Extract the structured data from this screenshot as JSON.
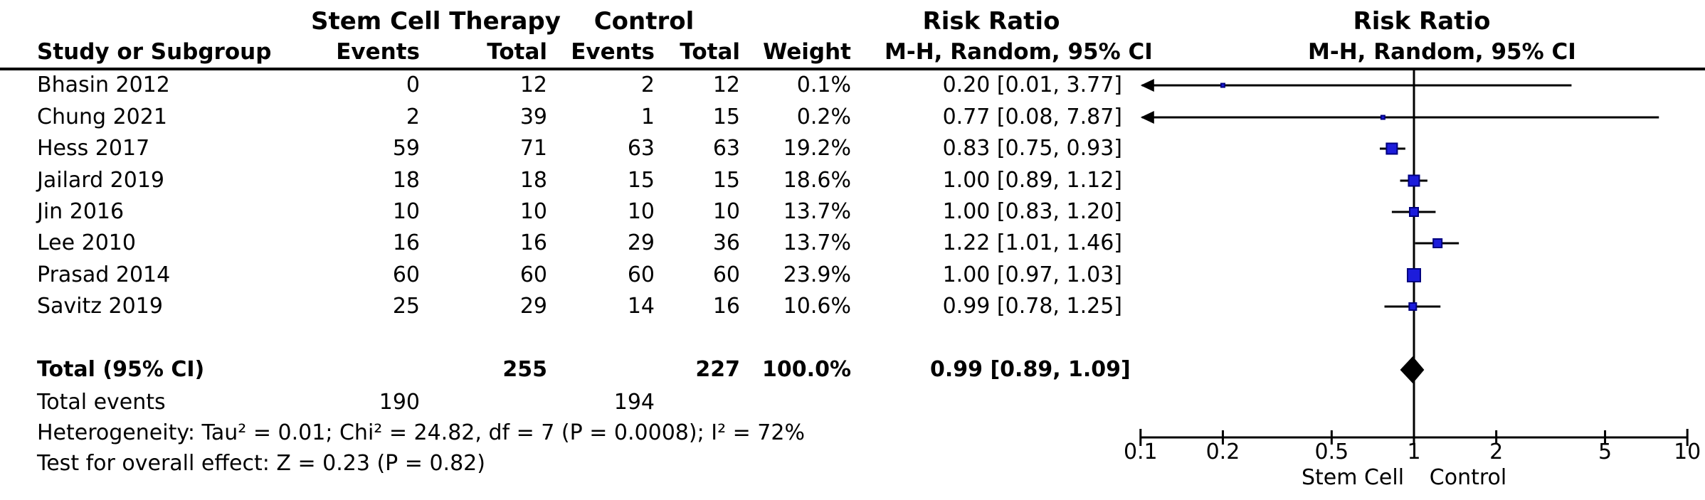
{
  "colors": {
    "background": "#ffffff",
    "text": "#000000",
    "line": "#000000",
    "marker_fill": "#1c1cdb",
    "marker_border": "#000080",
    "diamond": "#000000"
  },
  "header": {
    "group_sct": "Stem Cell Therapy",
    "group_ctrl": "Control",
    "rr_title_text": "Risk Ratio",
    "rr_title_plot": "Risk Ratio",
    "study_col": "Study or Subgroup",
    "events_col_sct": "Events",
    "total_col_sct": "Total",
    "events_col_ctrl": "Events",
    "total_col_ctrl": "Total",
    "weight_col": "Weight",
    "mh_text_col": "M-H, Random, 95% CI",
    "mh_plot_col": "M-H, Random, 95% CI"
  },
  "chart_data": {
    "type": "scatter",
    "subtype": "forest-plot",
    "title": "Risk Ratio",
    "subtitle": "M-H, Random, 95% CI",
    "x_scale": "log",
    "xlim": [
      0.1,
      10
    ],
    "x_tick_labels": [
      "0.1",
      "0.2",
      "0.5",
      "1",
      "2",
      "5",
      "10"
    ],
    "x_tick_values": [
      0.1,
      0.2,
      0.5,
      1,
      2,
      5,
      10
    ],
    "axis_label_left": "Stem Cell",
    "axis_label_right": "Control",
    "studies": [
      {
        "name": "Bhasin 2012",
        "events_sct": "0",
        "total_sct": "12",
        "events_ctrl": "2",
        "total_ctrl": "12",
        "weight": "0.1%",
        "weight_pct": 0.1,
        "rr_label": "0.20 [0.01, 3.77]",
        "rr": 0.2,
        "ci_low": 0.01,
        "ci_high": 3.77
      },
      {
        "name": "Chung 2021",
        "events_sct": "2",
        "total_sct": "39",
        "events_ctrl": "1",
        "total_ctrl": "15",
        "weight": "0.2%",
        "weight_pct": 0.2,
        "rr_label": "0.77 [0.08, 7.87]",
        "rr": 0.77,
        "ci_low": 0.08,
        "ci_high": 7.87
      },
      {
        "name": "Hess 2017",
        "events_sct": "59",
        "total_sct": "71",
        "events_ctrl": "63",
        "total_ctrl": "63",
        "weight": "19.2%",
        "weight_pct": 19.2,
        "rr_label": "0.83 [0.75, 0.93]",
        "rr": 0.83,
        "ci_low": 0.75,
        "ci_high": 0.93
      },
      {
        "name": "Jailard 2019",
        "events_sct": "18",
        "total_sct": "18",
        "events_ctrl": "15",
        "total_ctrl": "15",
        "weight": "18.6%",
        "weight_pct": 18.6,
        "rr_label": "1.00 [0.89, 1.12]",
        "rr": 1.0,
        "ci_low": 0.89,
        "ci_high": 1.12
      },
      {
        "name": "Jin 2016",
        "events_sct": "10",
        "total_sct": "10",
        "events_ctrl": "10",
        "total_ctrl": "10",
        "weight": "13.7%",
        "weight_pct": 13.7,
        "rr_label": "1.00 [0.83, 1.20]",
        "rr": 1.0,
        "ci_low": 0.83,
        "ci_high": 1.2
      },
      {
        "name": "Lee 2010",
        "events_sct": "16",
        "total_sct": "16",
        "events_ctrl": "29",
        "total_ctrl": "36",
        "weight": "13.7%",
        "weight_pct": 13.7,
        "rr_label": "1.22 [1.01, 1.46]",
        "rr": 1.22,
        "ci_low": 1.01,
        "ci_high": 1.46
      },
      {
        "name": "Prasad 2014",
        "events_sct": "60",
        "total_sct": "60",
        "events_ctrl": "60",
        "total_ctrl": "60",
        "weight": "23.9%",
        "weight_pct": 23.9,
        "rr_label": "1.00 [0.97, 1.03]",
        "rr": 1.0,
        "ci_low": 0.97,
        "ci_high": 1.03
      },
      {
        "name": "Savitz 2019",
        "events_sct": "25",
        "total_sct": "29",
        "events_ctrl": "14",
        "total_ctrl": "16",
        "weight": "10.6%",
        "weight_pct": 10.6,
        "rr_label": "0.99 [0.78, 1.25]",
        "rr": 0.99,
        "ci_low": 0.78,
        "ci_high": 1.25
      }
    ],
    "total": {
      "label": "Total (95% CI)",
      "total_sct": "255",
      "total_ctrl": "227",
      "weight": "100.0%",
      "rr_label": "0.99 [0.89, 1.09]",
      "rr": 0.99,
      "ci_low": 0.89,
      "ci_high": 1.09
    },
    "total_events": {
      "label": "Total events",
      "sct": "190",
      "ctrl": "194"
    },
    "heterogeneity": "Heterogeneity: Tau² = 0.01; Chi² = 24.82, df = 7 (P = 0.0008); I² = 72%",
    "overall_effect": "Test for overall effect: Z = 0.23 (P = 0.82)"
  }
}
